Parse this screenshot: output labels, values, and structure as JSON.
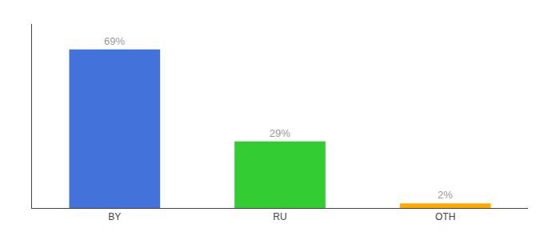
{
  "chart_data": {
    "type": "bar",
    "categories": [
      "BY",
      "RU",
      "OTH"
    ],
    "values": [
      69,
      29,
      2
    ],
    "value_labels": [
      "69%",
      "29%",
      "2%"
    ],
    "colors": [
      "#4472db",
      "#33cc33",
      "#ffaa00"
    ],
    "ylim": [
      0,
      80
    ],
    "data_labels": true,
    "tick_labels": "x",
    "grid": false
  }
}
